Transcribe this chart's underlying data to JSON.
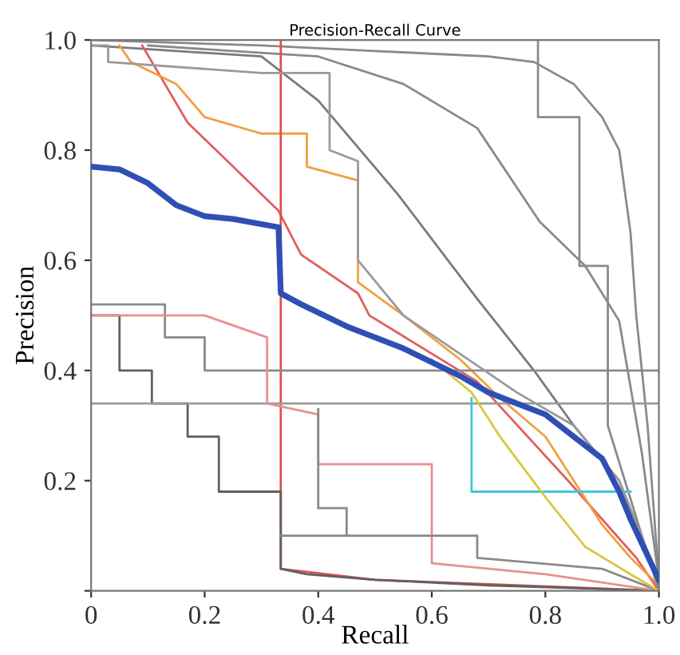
{
  "chart_data": {
    "type": "line",
    "title": "Precision-Recall Curve",
    "xlabel": "Recall",
    "ylabel": "Precision",
    "xlim": [
      0,
      1
    ],
    "ylim": [
      0,
      1
    ],
    "xticks": [
      0,
      0.2,
      0.4,
      0.6,
      0.8,
      {
        "value": 1,
        "label": "1.0"
      }
    ],
    "yticks": [
      {
        "value": 0,
        "label": null
      },
      0.2,
      0.4,
      0.6,
      0.8,
      {
        "value": 1,
        "label": "1.0"
      }
    ],
    "grid": false,
    "marker": "none",
    "line_style": "solid",
    "series": [
      {
        "color": "#2f4fb5",
        "x": [
          0,
          0.05,
          0.1,
          0.15,
          0.2,
          0.25,
          0.33,
          0.334,
          0.37,
          0.45,
          0.55,
          0.65,
          0.7,
          0.8,
          0.85,
          0.9,
          0.93,
          0.95,
          1.0
        ],
        "values": [
          0.77,
          0.765,
          0.74,
          0.7,
          0.68,
          0.675,
          0.66,
          0.54,
          0.52,
          0.48,
          0.44,
          0.39,
          0.36,
          0.32,
          0.28,
          0.24,
          0.18,
          0.13,
          0.02
        ]
      },
      {
        "color": "#8a8a8a",
        "x": [
          0,
          0.3,
          0.5,
          0.6,
          0.7,
          0.78,
          0.85,
          0.9,
          0.93,
          0.95,
          0.96,
          0.98,
          1.0
        ],
        "values": [
          1.0,
          0.99,
          0.98,
          0.975,
          0.97,
          0.96,
          0.92,
          0.86,
          0.8,
          0.65,
          0.5,
          0.3,
          0.02
        ]
      },
      {
        "color": "#8a8a8a",
        "x": [
          0.1,
          0.25,
          0.4,
          0.55,
          0.68,
          0.79,
          0.87,
          0.93,
          0.97,
          1.0
        ],
        "values": [
          0.99,
          0.98,
          0.97,
          0.92,
          0.84,
          0.67,
          0.59,
          0.49,
          0.25,
          0.02
        ]
      },
      {
        "color": "#7a7a7a",
        "x": [
          0,
          0.3,
          0.4,
          0.54,
          0.68,
          0.78,
          0.85,
          0.93,
          1.0
        ],
        "values": [
          0.99,
          0.97,
          0.89,
          0.72,
          0.53,
          0.4,
          0.3,
          0.2,
          0.02
        ]
      },
      {
        "color": "#e06060",
        "x": [
          0.09,
          0.17,
          0.23,
          0.33,
          0.37,
          0.47,
          0.49,
          0.68,
          0.84,
          0.96,
          1.0
        ],
        "values": [
          0.99,
          0.85,
          0.79,
          0.69,
          0.61,
          0.54,
          0.5,
          0.38,
          0.2,
          0.06,
          0.0
        ]
      },
      {
        "color": "#f0a040",
        "x": [
          0.05,
          0.07,
          0.15,
          0.2,
          0.3,
          0.38,
          0.38,
          0.47,
          0.47,
          0.55,
          0.65,
          0.72,
          0.8,
          0.85,
          0.9,
          0.95,
          1.0
        ],
        "values": [
          0.99,
          0.96,
          0.92,
          0.86,
          0.83,
          0.83,
          0.77,
          0.745,
          0.56,
          0.5,
          0.42,
          0.35,
          0.28,
          0.2,
          0.12,
          0.06,
          0.01
        ]
      },
      {
        "color": "#8a8a8a",
        "x": [
          0.787,
          0.787,
          0.86,
          0.86,
          0.91,
          0.91,
          1.0
        ],
        "values": [
          1.0,
          0.86,
          0.86,
          0.59,
          0.59,
          0.3,
          0.0
        ]
      },
      {
        "color": "#e05050",
        "x": [
          0.334,
          0.334,
          0.5,
          1.0
        ],
        "values": [
          1.0,
          0.04,
          0.02,
          0.0
        ]
      },
      {
        "color": "#606060",
        "x": [
          0,
          0.05,
          0.05,
          0.107,
          0.107,
          0.17,
          0.17,
          0.225,
          0.225,
          0.334,
          0.334,
          0.38,
          0.5,
          0.7,
          1.0
        ],
        "values": [
          0.5,
          0.5,
          0.4,
          0.4,
          0.34,
          0.34,
          0.28,
          0.28,
          0.18,
          0.18,
          0.04,
          0.03,
          0.02,
          0.01,
          0.0
        ]
      },
      {
        "color": "#9a9a9a",
        "x": [
          0,
          1.0
        ],
        "values": [
          0.34,
          0.34
        ]
      },
      {
        "color": "#8a8a8a",
        "x": [
          0,
          0.13,
          0.13,
          0.2,
          0.2,
          1.0
        ],
        "values": [
          0.52,
          0.52,
          0.46,
          0.46,
          0.4,
          0.4
        ]
      },
      {
        "color": "#e89090",
        "x": [
          0,
          0.2,
          0.31,
          0.31,
          0.4,
          0.4,
          0.6,
          0.6,
          0.8,
          1.0
        ],
        "values": [
          0.5,
          0.5,
          0.46,
          0.34,
          0.32,
          0.23,
          0.23,
          0.05,
          0.03,
          0.0
        ]
      },
      {
        "color": "#8a8a8a",
        "x": [
          0.334,
          0.68,
          0.68,
          0.9,
          1.0
        ],
        "values": [
          0.1,
          0.1,
          0.06,
          0.04,
          0.0
        ]
      },
      {
        "color": "#8a8a8a",
        "x": [
          0.4,
          0.4,
          0.45,
          0.45
        ],
        "values": [
          0.33,
          0.15,
          0.15,
          0.1
        ]
      },
      {
        "color": "#40c8d8",
        "x": [
          0.67,
          0.67,
          0.95
        ],
        "values": [
          0.35,
          0.18,
          0.18
        ]
      },
      {
        "color": "#d8c840",
        "x": [
          0.6,
          0.67,
          0.72,
          0.8,
          0.87,
          0.95,
          1.0
        ],
        "values": [
          0.42,
          0.36,
          0.28,
          0.17,
          0.08,
          0.03,
          0.0
        ]
      },
      {
        "color": "#9a9a9a",
        "x": [
          0,
          0.03,
          0.03,
          0.3,
          0.42,
          0.42,
          0.47,
          0.47,
          0.55,
          0.65,
          0.75,
          0.85,
          0.93,
          1.0
        ],
        "values": [
          0.99,
          0.99,
          0.96,
          0.94,
          0.94,
          0.8,
          0.78,
          0.6,
          0.5,
          0.43,
          0.36,
          0.3,
          0.2,
          0.02
        ]
      }
    ]
  }
}
